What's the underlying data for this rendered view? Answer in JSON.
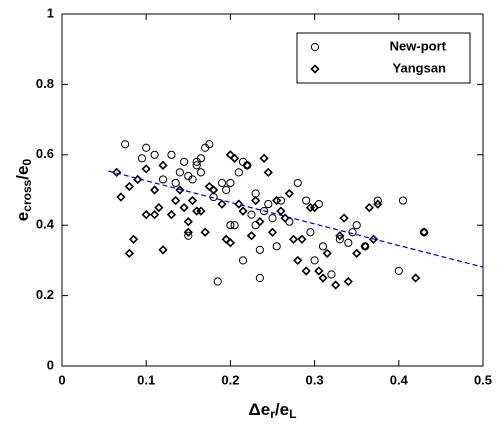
{
  "chart_data": {
    "type": "scatter",
    "xlabel": [
      "Δe",
      "r",
      "/e",
      "L"
    ],
    "ylabel": [
      "e",
      "cross",
      "/e",
      "0"
    ],
    "xlim": [
      0,
      0.5
    ],
    "ylim": [
      0,
      1
    ],
    "xticks": [
      0,
      0.1,
      0.2,
      0.3,
      0.4,
      0.5
    ],
    "yticks": [
      0,
      0.2,
      0.4,
      0.6,
      0.8,
      1
    ],
    "legend": "upper right",
    "series": [
      {
        "name": "New-port",
        "marker": "circle",
        "color": "#000000",
        "x": [
          0.075,
          0.095,
          0.1,
          0.11,
          0.12,
          0.13,
          0.135,
          0.14,
          0.145,
          0.15,
          0.15,
          0.155,
          0.16,
          0.16,
          0.165,
          0.165,
          0.17,
          0.175,
          0.18,
          0.185,
          0.19,
          0.195,
          0.2,
          0.2,
          0.205,
          0.21,
          0.215,
          0.215,
          0.22,
          0.225,
          0.23,
          0.23,
          0.235,
          0.235,
          0.24,
          0.245,
          0.25,
          0.255,
          0.26,
          0.27,
          0.28,
          0.29,
          0.295,
          0.3,
          0.305,
          0.31,
          0.32,
          0.33,
          0.34,
          0.345,
          0.35,
          0.36,
          0.375,
          0.4,
          0.405,
          0.43
        ],
        "values": [
          0.63,
          0.59,
          0.62,
          0.6,
          0.53,
          0.6,
          0.52,
          0.55,
          0.58,
          0.37,
          0.54,
          0.53,
          0.57,
          0.58,
          0.59,
          0.55,
          0.62,
          0.63,
          0.48,
          0.24,
          0.52,
          0.5,
          0.4,
          0.52,
          0.4,
          0.55,
          0.3,
          0.58,
          0.57,
          0.43,
          0.49,
          0.4,
          0.25,
          0.33,
          0.44,
          0.46,
          0.42,
          0.34,
          0.47,
          0.41,
          0.52,
          0.47,
          0.38,
          0.3,
          0.46,
          0.34,
          0.26,
          0.36,
          0.35,
          0.38,
          0.4,
          0.34,
          0.47,
          0.27,
          0.47,
          0.38
        ]
      },
      {
        "name": "Yangsan",
        "marker": "diamond",
        "color": "#000000",
        "x": [
          0.065,
          0.07,
          0.08,
          0.08,
          0.085,
          0.09,
          0.1,
          0.1,
          0.11,
          0.11,
          0.115,
          0.12,
          0.12,
          0.13,
          0.135,
          0.14,
          0.145,
          0.15,
          0.15,
          0.155,
          0.16,
          0.165,
          0.17,
          0.175,
          0.18,
          0.19,
          0.195,
          0.2,
          0.2,
          0.205,
          0.21,
          0.215,
          0.22,
          0.225,
          0.23,
          0.235,
          0.24,
          0.245,
          0.25,
          0.255,
          0.26,
          0.265,
          0.27,
          0.275,
          0.28,
          0.285,
          0.29,
          0.295,
          0.3,
          0.305,
          0.31,
          0.315,
          0.325,
          0.33,
          0.335,
          0.34,
          0.35,
          0.36,
          0.365,
          0.37,
          0.375,
          0.42,
          0.43
        ],
        "values": [
          0.55,
          0.48,
          0.51,
          0.32,
          0.36,
          0.53,
          0.56,
          0.43,
          0.5,
          0.43,
          0.45,
          0.57,
          0.33,
          0.43,
          0.47,
          0.5,
          0.45,
          0.38,
          0.41,
          0.47,
          0.44,
          0.44,
          0.38,
          0.51,
          0.5,
          0.46,
          0.36,
          0.35,
          0.6,
          0.59,
          0.46,
          0.44,
          0.57,
          0.37,
          0.47,
          0.41,
          0.59,
          0.55,
          0.38,
          0.47,
          0.44,
          0.42,
          0.49,
          0.36,
          0.3,
          0.36,
          0.27,
          0.45,
          0.45,
          0.27,
          0.25,
          0.32,
          0.23,
          0.37,
          0.42,
          0.24,
          0.32,
          0.34,
          0.45,
          0.36,
          0.46,
          0.25,
          0.38
        ]
      }
    ],
    "trend_line": {
      "x": [
        0.055,
        0.5
      ],
      "values": [
        0.554,
        0.281
      ],
      "color": "#0000cc"
    }
  }
}
